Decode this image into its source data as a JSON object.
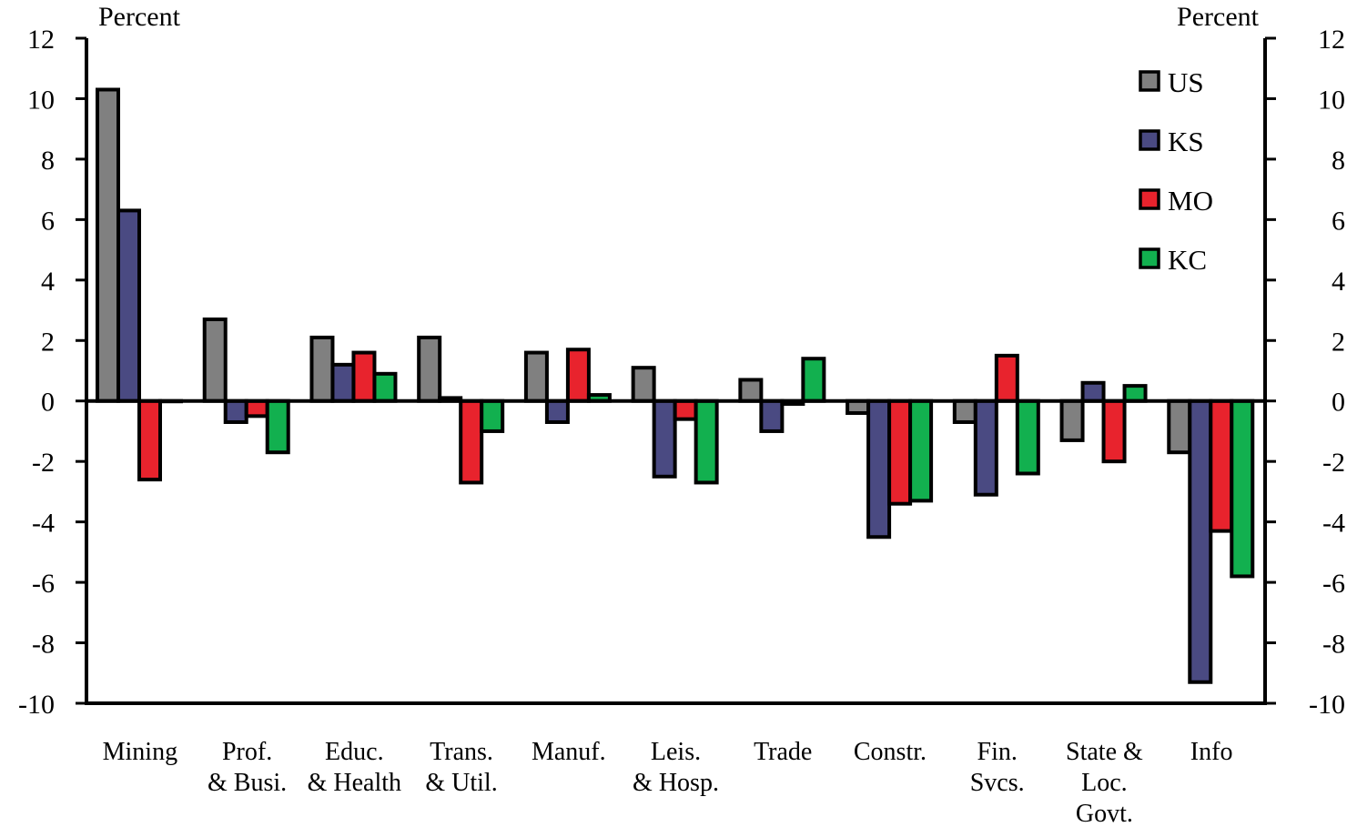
{
  "chart_data": {
    "type": "bar",
    "left_axis_label": "Percent",
    "right_axis_label": "Percent",
    "ylim": [
      -10,
      12
    ],
    "yticks": [
      12,
      10,
      8,
      6,
      4,
      2,
      0,
      -2,
      -4,
      -6,
      -8,
      -10
    ],
    "grid": false,
    "legend_position": "top-right",
    "categories": [
      [
        "Mining"
      ],
      [
        "Prof.",
        "& Busi."
      ],
      [
        "Educ.",
        "& Health"
      ],
      [
        "Trans.",
        "& Util."
      ],
      [
        "Manuf."
      ],
      [
        "Leis.",
        "& Hosp."
      ],
      [
        "Trade"
      ],
      [
        "Constr."
      ],
      [
        "Fin.",
        "Svcs."
      ],
      [
        "State &",
        "Loc.",
        "Govt."
      ],
      [
        "Info"
      ]
    ],
    "series": [
      {
        "name": "US",
        "color": "#808080",
        "values": [
          10.3,
          2.7,
          2.1,
          2.1,
          1.6,
          1.1,
          0.7,
          -0.4,
          -0.7,
          -1.3,
          -1.7
        ]
      },
      {
        "name": "KS",
        "color": "#4a4a82",
        "values": [
          6.3,
          -0.7,
          1.2,
          0.1,
          -0.7,
          -2.5,
          -1.0,
          -4.5,
          -3.1,
          0.6,
          -9.3
        ]
      },
      {
        "name": "MO",
        "color": "#e8232d",
        "values": [
          -2.6,
          -0.5,
          1.6,
          -2.7,
          1.7,
          -0.6,
          -0.1,
          -3.4,
          1.5,
          -2.0,
          -4.3
        ]
      },
      {
        "name": "KC",
        "color": "#12b04f",
        "values": [
          0.0,
          -1.7,
          0.9,
          -1.0,
          0.2,
          -2.7,
          1.4,
          -3.3,
          -2.4,
          0.5,
          -5.8
        ]
      }
    ]
  }
}
